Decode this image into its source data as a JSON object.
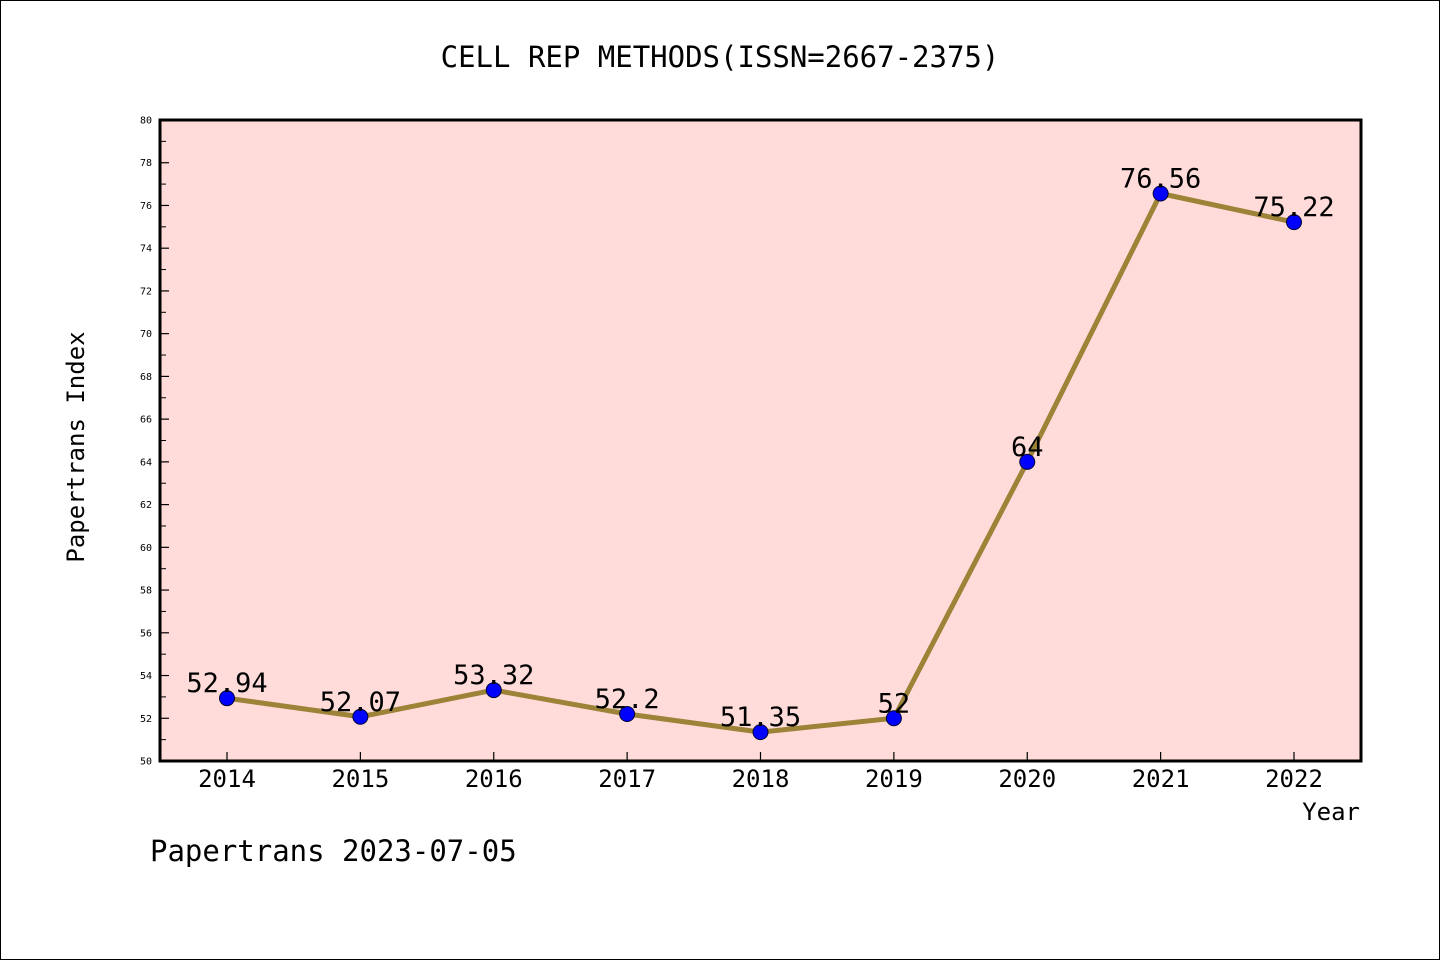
{
  "footer": "Papertrans 2023-07-05",
  "chart_data": {
    "type": "line",
    "title": "CELL REP METHODS(ISSN=2667-2375)",
    "xlabel": "Year",
    "ylabel": "Papertrans Index",
    "categories": [
      "2014",
      "2015",
      "2016",
      "2017",
      "2018",
      "2019",
      "2020",
      "2021",
      "2022"
    ],
    "values": [
      52.94,
      52.07,
      53.32,
      52.2,
      51.35,
      52,
      64,
      76.56,
      75.22
    ],
    "data_labels": [
      "52.94",
      "52.07",
      "53.32",
      "52.2",
      "51.35",
      "52",
      "64",
      "76.56",
      "75.22"
    ],
    "ylim": [
      50,
      80
    ],
    "yticks": [
      "50",
      "52",
      "54",
      "56",
      "58",
      "60",
      "62",
      "64",
      "66",
      "68",
      "70",
      "72",
      "74",
      "76",
      "78",
      "80"
    ],
    "grid": false,
    "colors": {
      "plot_background": "#FFDCDA",
      "line": "#9C8338",
      "marker": "#0000FF"
    }
  }
}
